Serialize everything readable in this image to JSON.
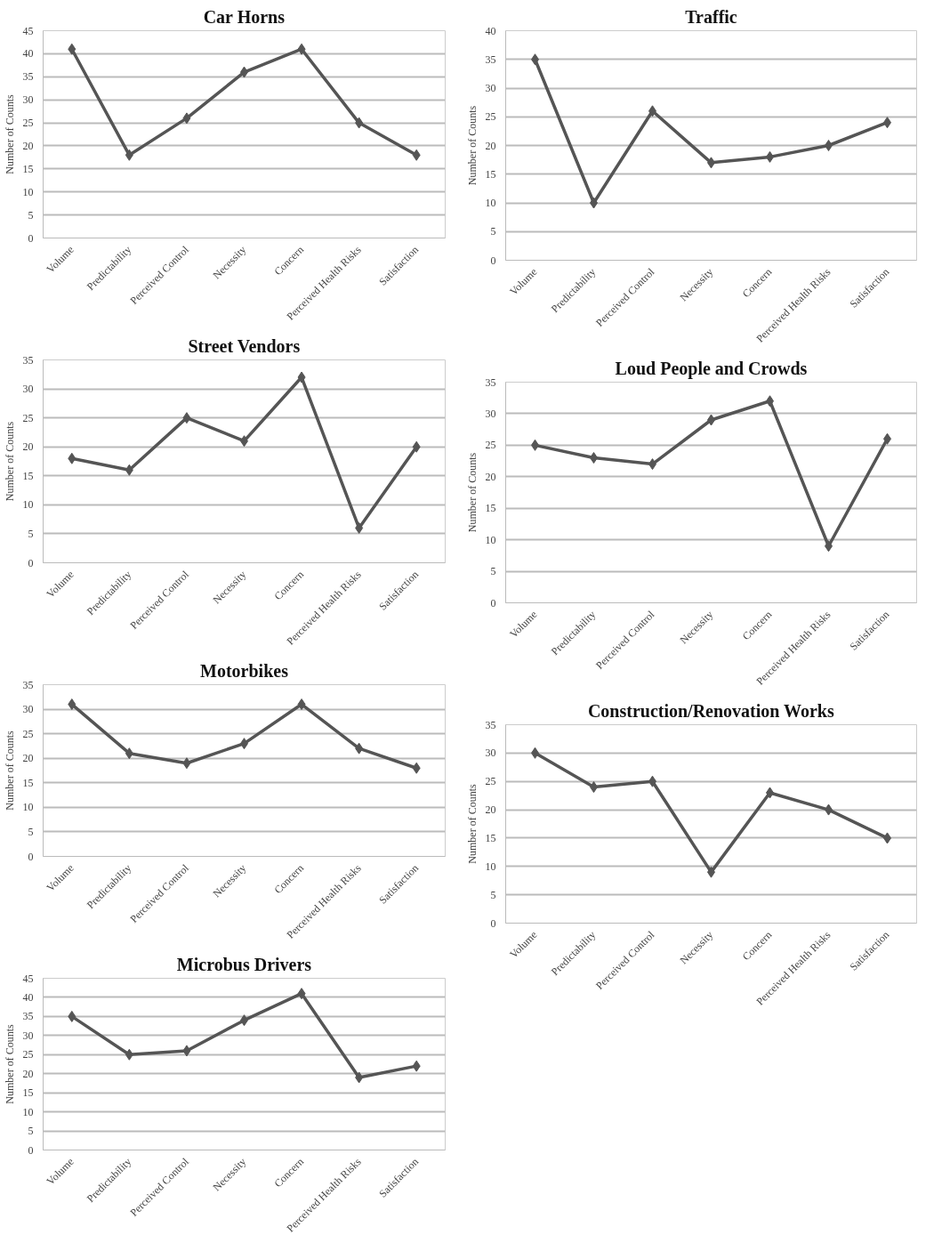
{
  "chart_data": [
    {
      "type": "line",
      "title": "Car Horns",
      "ylabel": "Number of Counts",
      "categories": [
        "Volume",
        "Predictability",
        "Perceived Control",
        "Necessity",
        "Concern",
        "Perceived Health Risks",
        "Satisfaction"
      ],
      "values": [
        41,
        18,
        26,
        36,
        41,
        25,
        18
      ],
      "color": "#555555",
      "ylim": [
        0,
        45
      ],
      "yticks": [
        0,
        5,
        10,
        15,
        20,
        25,
        30,
        35,
        40,
        45
      ],
      "grid": "y",
      "marker": "diamond",
      "line_style": "solid"
    },
    {
      "type": "line",
      "title": "Traffic",
      "ylabel": "Number of Counts",
      "categories": [
        "Volume",
        "Predictability",
        "Perceived Control",
        "Necessity",
        "Concern",
        "Perceived Health Risks",
        "Satisfaction"
      ],
      "values": [
        35,
        10,
        26,
        17,
        18,
        20,
        24
      ],
      "color": "#555555",
      "ylim": [
        0,
        40
      ],
      "yticks": [
        0,
        5,
        10,
        15,
        20,
        25,
        30,
        35,
        40
      ],
      "grid": "y",
      "marker": "diamond",
      "line_style": "solid"
    },
    {
      "type": "line",
      "title": "Street Vendors",
      "ylabel": "Number of Counts",
      "categories": [
        "Volume",
        "Predictability",
        "Perceived Control",
        "Necessity",
        "Concern",
        "Perceived Health Risks",
        "Satisfaction"
      ],
      "values": [
        18,
        16,
        25,
        21,
        32,
        6,
        20
      ],
      "color": "#555555",
      "ylim": [
        0,
        35
      ],
      "yticks": [
        0,
        5,
        10,
        15,
        20,
        25,
        30,
        35
      ],
      "grid": "y",
      "marker": "diamond",
      "line_style": "solid"
    },
    {
      "type": "line",
      "title": "Loud People and Crowds",
      "ylabel": "Number of Counts",
      "categories": [
        "Volume",
        "Predictability",
        "Perceived Control",
        "Necessity",
        "Concern",
        "Perceived Health Risks",
        "Satisfaction"
      ],
      "values": [
        25,
        23,
        22,
        29,
        32,
        9,
        26
      ],
      "color": "#555555",
      "ylim": [
        0,
        35
      ],
      "yticks": [
        0,
        5,
        10,
        15,
        20,
        25,
        30,
        35
      ],
      "grid": "y",
      "marker": "diamond",
      "line_style": "solid"
    },
    {
      "type": "line",
      "title": "Motorbikes",
      "ylabel": "Number of Counts",
      "categories": [
        "Volume",
        "Predictability",
        "Perceived Control",
        "Necessity",
        "Concern",
        "Perceived Health Risks",
        "Satisfaction"
      ],
      "values": [
        31,
        21,
        19,
        23,
        31,
        22,
        18
      ],
      "color": "#555555",
      "ylim": [
        0,
        35
      ],
      "yticks": [
        0,
        5,
        10,
        15,
        20,
        25,
        30,
        35
      ],
      "grid": "y",
      "marker": "diamond",
      "line_style": "solid"
    },
    {
      "type": "line",
      "title": "Construction/Renovation Works",
      "ylabel": "Number of Counts",
      "categories": [
        "Volume",
        "Predictability",
        "Perceived Control",
        "Necessity",
        "Concern",
        "Perceived Health Risks",
        "Satisfaction"
      ],
      "values": [
        30,
        24,
        25,
        9,
        23,
        20,
        15
      ],
      "color": "#555555",
      "ylim": [
        0,
        35
      ],
      "yticks": [
        0,
        5,
        10,
        15,
        20,
        25,
        30,
        35
      ],
      "grid": "y",
      "marker": "diamond",
      "line_style": "solid"
    },
    {
      "type": "line",
      "title": "Microbus Drivers",
      "ylabel": "Number of Counts",
      "categories": [
        "Volume",
        "Predictability",
        "Perceived Control",
        "Necessity",
        "Concern",
        "Perceived Health Risks",
        "Satisfaction"
      ],
      "values": [
        35,
        25,
        26,
        34,
        41,
        19,
        22
      ],
      "color": "#555555",
      "ylim": [
        0,
        45
      ],
      "yticks": [
        0,
        5,
        10,
        15,
        20,
        25,
        30,
        35,
        40,
        45
      ],
      "grid": "y",
      "marker": "diamond",
      "line_style": "solid"
    }
  ]
}
